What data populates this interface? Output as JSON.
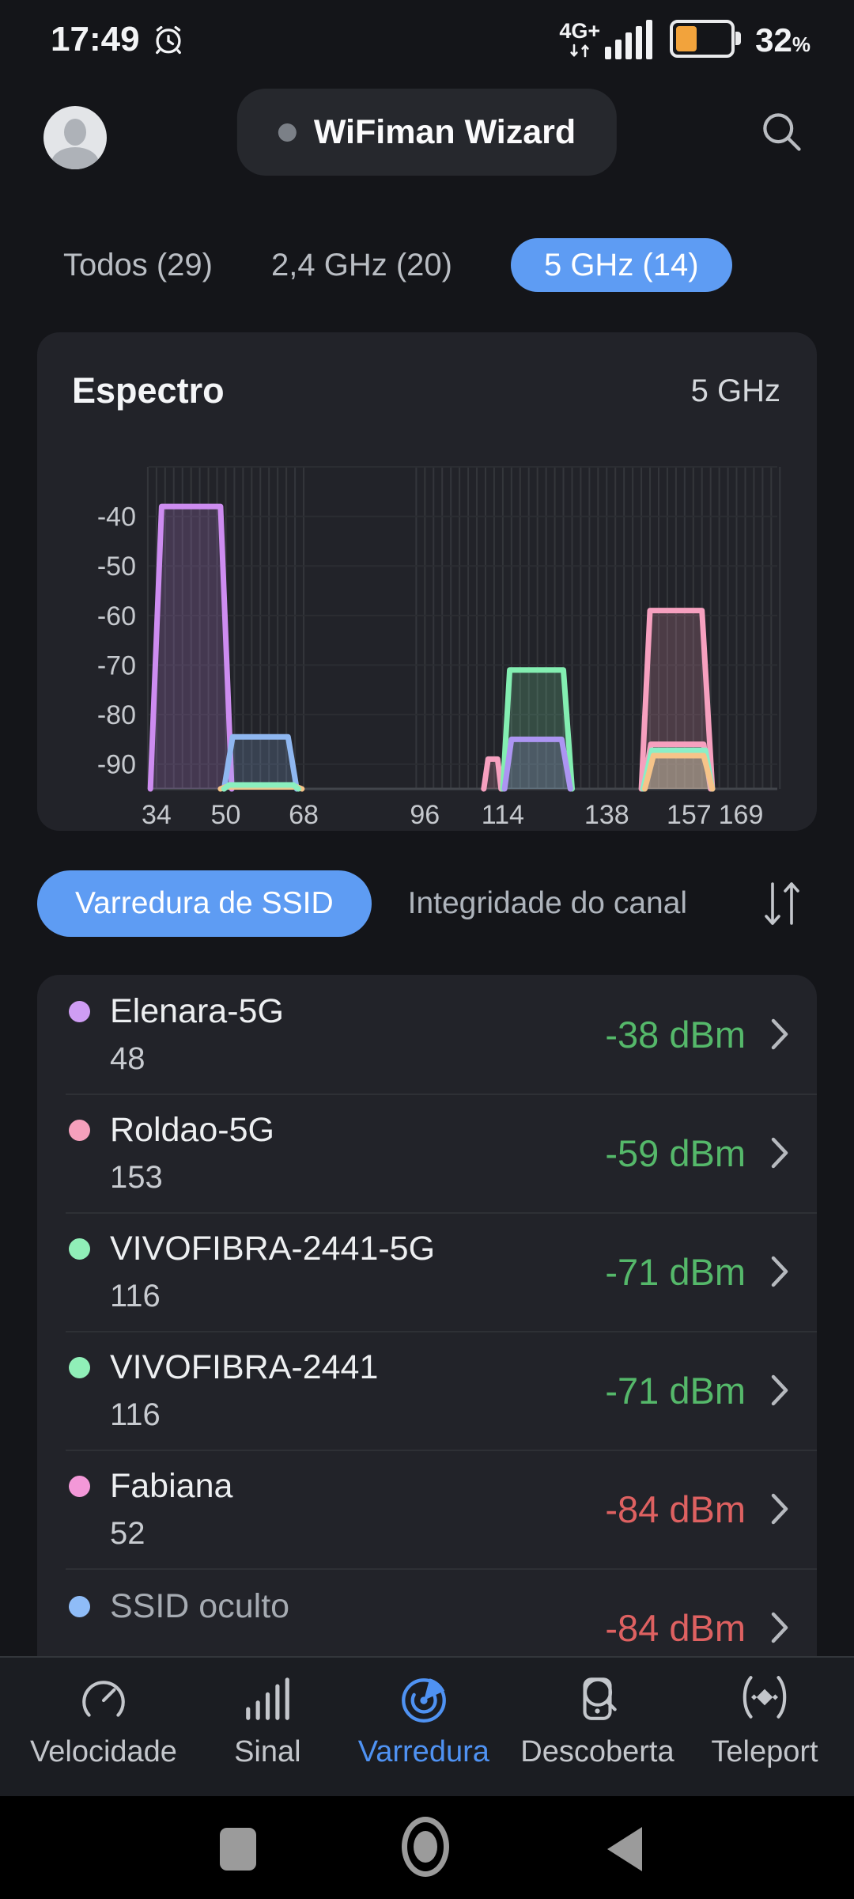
{
  "status_bar": {
    "time": "17:49",
    "network_label": "4G+",
    "battery_percent": "32",
    "percent_sign": "%"
  },
  "header": {
    "title": "WiFiman Wizard"
  },
  "tabs": [
    {
      "label": "Todos (29)",
      "active": false
    },
    {
      "label": "2,4 GHz (20)",
      "active": false
    },
    {
      "label": "5 GHz (14)",
      "active": true
    }
  ],
  "spectrum_card": {
    "title": "Espectro",
    "band_label": "5 GHz"
  },
  "chart_data": {
    "type": "area",
    "title": "Espectro",
    "band": "5 GHz",
    "unit": "dBm",
    "y_ticks": [
      -40,
      -50,
      -60,
      -70,
      -80,
      -90
    ],
    "y_range": [
      -95,
      -30
    ],
    "x_range_mhz": [
      5161,
      5887
    ],
    "x_ticks": [
      {
        "label": "34",
        "mhz": 5170
      },
      {
        "label": "50",
        "mhz": 5250
      },
      {
        "label": "68",
        "mhz": 5340
      },
      {
        "label": "96",
        "mhz": 5480
      },
      {
        "label": "114",
        "mhz": 5570
      },
      {
        "label": "138",
        "mhz": 5690
      },
      {
        "label": "157",
        "mhz": 5785
      },
      {
        "label": "169",
        "mhz": 5845
      }
    ],
    "grid_bands_mhz": [
      [
        5160,
        5340
      ],
      [
        5470,
        5890
      ]
    ],
    "grid_step_mhz": 10,
    "label_color": "#c5c8cd",
    "series": [
      {
        "label": "Elenara-5G",
        "color": "#cd8cf0",
        "peak_dbm": -38,
        "base_mhz": [
          5163,
          5257
        ],
        "top_mhz": [
          5176,
          5244
        ]
      },
      {
        "label": "SSID oculto",
        "color": "#8fb7f0",
        "peak_dbm": -84.5,
        "base_mhz": [
          5248,
          5332
        ],
        "top_mhz": [
          5258,
          5322
        ]
      },
      {
        "label": "",
        "color": "#f6c489",
        "peak_dbm": -94.6,
        "base_mhz": [
          5244,
          5338
        ],
        "top_mhz": [
          5250,
          5332
        ]
      },
      {
        "label": "",
        "color": "#8aefbf",
        "peak_dbm": -94.2,
        "base_mhz": [
          5248,
          5334
        ],
        "top_mhz": [
          5254,
          5328
        ]
      },
      {
        "label": "",
        "color": "#f6a0bf",
        "peak_dbm": -89,
        "base_mhz": [
          5548,
          5568
        ],
        "top_mhz": [
          5553,
          5564
        ]
      },
      {
        "label": "VIVOFIBRA-2441-5G / VIVOFIBRA-2441",
        "color": "#83eeb1",
        "peak_dbm": -71,
        "base_mhz": [
          5570,
          5650
        ],
        "top_mhz": [
          5578,
          5640
        ]
      },
      {
        "label": "",
        "color": "#ac95f2",
        "peak_dbm": -85,
        "base_mhz": [
          5572,
          5648
        ],
        "top_mhz": [
          5580,
          5638
        ]
      },
      {
        "label": "Roldao-5G",
        "color": "#f6a0bf",
        "peak_dbm": -59,
        "base_mhz": [
          5730,
          5812
        ],
        "top_mhz": [
          5740,
          5800
        ]
      },
      {
        "label": "",
        "color": "#f6a0bf",
        "peak_dbm": -86,
        "base_mhz": [
          5732,
          5810
        ],
        "top_mhz": [
          5741,
          5802
        ]
      },
      {
        "label": "",
        "color": "#8aefc7",
        "peak_dbm": -87.2,
        "base_mhz": [
          5732,
          5812
        ],
        "top_mhz": [
          5742,
          5804
        ]
      },
      {
        "label": "",
        "color": "#f6c489",
        "peak_dbm": -88.3,
        "base_mhz": [
          5734,
          5812
        ],
        "top_mhz": [
          5744,
          5802
        ]
      }
    ]
  },
  "actions": {
    "ssid_scan_label": "Varredura de SSID",
    "channel_health_label": "Integridade do canal"
  },
  "networks": [
    {
      "name": "Elenara-5G",
      "channel": "48",
      "signal": "-38 dBm",
      "dot_color": "#cf9df4",
      "signal_color": "#55b86a",
      "name_color": "#edeff1"
    },
    {
      "name": "Roldao-5G",
      "channel": "153",
      "signal": "-59 dBm",
      "dot_color": "#f5a0bc",
      "signal_color": "#55b86a",
      "name_color": "#edeff1"
    },
    {
      "name": "VIVOFIBRA-2441-5G",
      "channel": "116",
      "signal": "-71 dBm",
      "dot_color": "#90efb8",
      "signal_color": "#55b86a",
      "name_color": "#edeff1"
    },
    {
      "name": "VIVOFIBRA-2441",
      "channel": "116",
      "signal": "-71 dBm",
      "dot_color": "#90efb8",
      "signal_color": "#55b86a",
      "name_color": "#edeff1"
    },
    {
      "name": "Fabiana",
      "channel": "52",
      "signal": "-84 dBm",
      "dot_color": "#f398d8",
      "signal_color": "#de6161",
      "name_color": "#edeff1"
    },
    {
      "name": "SSID oculto",
      "channel": "",
      "signal": "-84 dBm",
      "dot_color": "#8fbcf7",
      "signal_color": "#de6161",
      "name_color": "#a6abb2"
    }
  ],
  "bottom_nav": [
    {
      "label": "Velocidade",
      "icon": "speedometer-icon",
      "active": false
    },
    {
      "label": "Sinal",
      "icon": "signal-bars-icon",
      "active": false
    },
    {
      "label": "Varredura",
      "icon": "radar-icon",
      "active": true
    },
    {
      "label": "Descoberta",
      "icon": "device-search-icon",
      "active": false
    },
    {
      "label": "Teleport",
      "icon": "teleport-icon",
      "active": false
    }
  ],
  "colors": {
    "accent_blue": "#5e9cf3",
    "nav_active": "#4f92f2",
    "signal_good": "#55b86a",
    "signal_bad": "#de6161",
    "battery_fill": "#f2a33c"
  }
}
